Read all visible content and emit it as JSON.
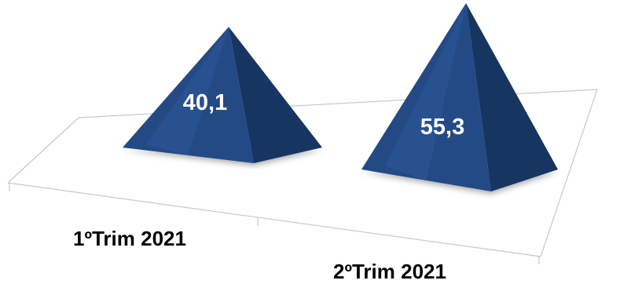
{
  "chart_data": {
    "type": "bar",
    "bar_shape": "pyramid",
    "three_d": true,
    "categories": [
      "1ºTrim 2021",
      "2ºTrim 2021"
    ],
    "values": [
      40.1,
      55.3
    ],
    "value_labels": [
      "40,1",
      "55,3"
    ],
    "title": "",
    "xlabel": "",
    "ylabel": "",
    "ylim": [
      0,
      60
    ],
    "grid": false,
    "legend": "none",
    "colors": {
      "face_light": "#2f5b9b",
      "face_mid": "#234a85",
      "face_dark": "#163561",
      "base_shadow": "#8a8a8a",
      "floor_line": "#c8c8c8",
      "label_text": "#ffffff",
      "tick_text": "#000000"
    }
  }
}
